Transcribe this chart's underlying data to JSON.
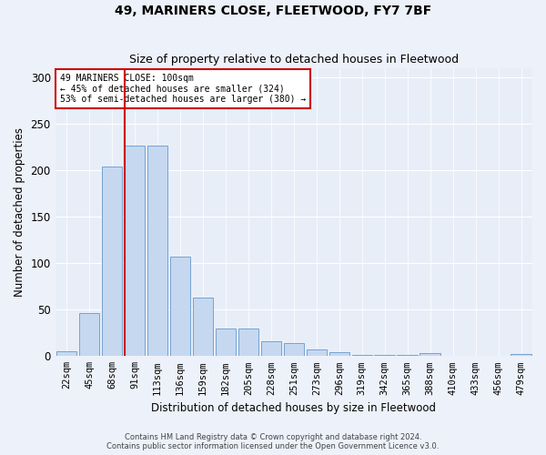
{
  "title": "49, MARINERS CLOSE, FLEETWOOD, FY7 7BF",
  "subtitle": "Size of property relative to detached houses in Fleetwood",
  "xlabel": "Distribution of detached houses by size in Fleetwood",
  "ylabel": "Number of detached properties",
  "bar_color": "#c5d8f0",
  "bar_edge_color": "#6699cc",
  "background_color": "#e8eef8",
  "grid_color": "#ffffff",
  "annotation_box_color": "#cc0000",
  "property_line_color": "#cc0000",
  "annotation_text": "49 MARINERS CLOSE: 100sqm\n← 45% of detached houses are smaller (324)\n53% of semi-detached houses are larger (380) →",
  "bin_labels": [
    "22sqm",
    "45sqm",
    "68sqm",
    "91sqm",
    "113sqm",
    "136sqm",
    "159sqm",
    "182sqm",
    "205sqm",
    "228sqm",
    "251sqm",
    "273sqm",
    "296sqm",
    "319sqm",
    "342sqm",
    "365sqm",
    "388sqm",
    "410sqm",
    "433sqm",
    "456sqm",
    "479sqm"
  ],
  "bar_values": [
    5,
    46,
    204,
    226,
    226,
    107,
    63,
    30,
    30,
    16,
    14,
    7,
    4,
    1,
    1,
    1,
    3,
    0,
    0,
    0,
    2
  ],
  "ylim": [
    0,
    310
  ],
  "yticks": [
    0,
    50,
    100,
    150,
    200,
    250,
    300
  ],
  "property_bin_index": 3,
  "footer_line1": "Contains HM Land Registry data © Crown copyright and database right 2024.",
  "footer_line2": "Contains public sector information licensed under the Open Government Licence v3.0."
}
